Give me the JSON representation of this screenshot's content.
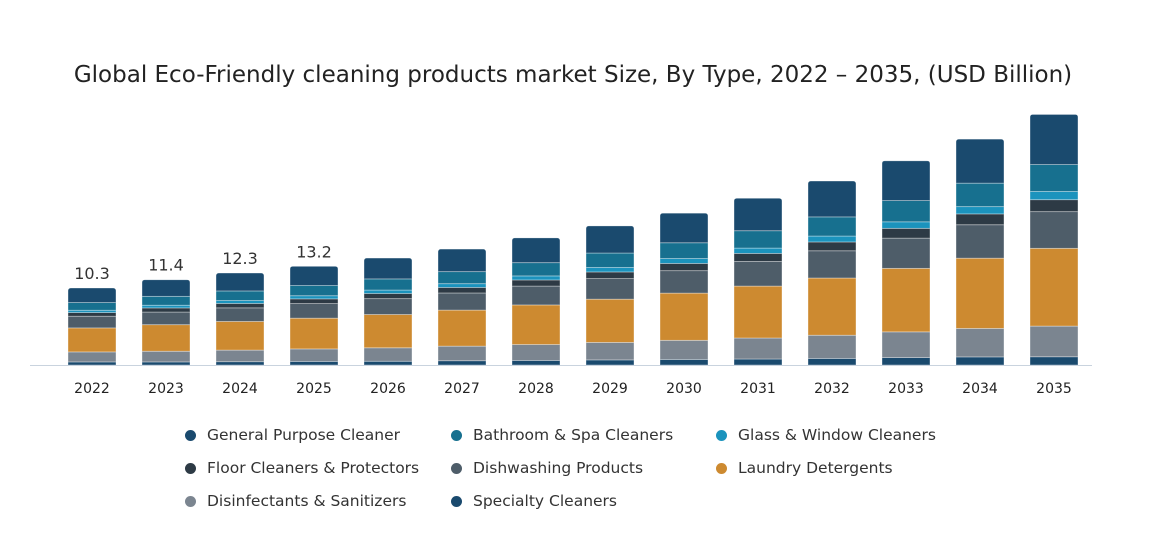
{
  "chart_data": {
    "type": "bar",
    "stacked": true,
    "title": "Global Eco-Friendly cleaning products market Size, By Type, 2022 – 2035, (USD Billion)",
    "xlabel": "",
    "ylabel": "",
    "ylim": [
      0,
      34
    ],
    "grid": false,
    "legend_placement": "bottom",
    "categories": [
      "2022",
      "2023",
      "2024",
      "2025",
      "2026",
      "2027",
      "2028",
      "2029",
      "2030",
      "2031",
      "2032",
      "2033",
      "2034",
      "2035"
    ],
    "totals_labels": [
      "10.3",
      "11.4",
      "12.3",
      "13.2"
    ],
    "series": [
      {
        "name": "Specialty Cleaners",
        "color": "#1a4a6e",
        "values": [
          0.41,
          0.41,
          0.44,
          0.48,
          0.5,
          0.57,
          0.6,
          0.68,
          0.74,
          0.8,
          0.88,
          0.99,
          1.08,
          1.1
        ]
      },
      {
        "name": "Disinfectants & Sanitizers",
        "color": "#7b8590",
        "values": [
          1.34,
          1.43,
          1.55,
          1.67,
          1.8,
          1.95,
          2.14,
          2.34,
          2.56,
          2.81,
          3.1,
          3.44,
          3.81,
          4.1
        ]
      },
      {
        "name": "Laundry Detergents",
        "color": "#cd8a30",
        "values": [
          3.21,
          3.55,
          3.83,
          4.11,
          4.45,
          4.82,
          5.29,
          5.78,
          6.31,
          6.94,
          7.65,
          8.49,
          9.39,
          10.4
        ]
      },
      {
        "name": "Dishwashing Products",
        "color": "#4e5d69",
        "values": [
          1.56,
          1.69,
          1.82,
          1.95,
          2.12,
          2.29,
          2.52,
          2.75,
          3.0,
          3.3,
          3.64,
          4.04,
          4.47,
          4.9
        ]
      },
      {
        "name": "Floor Cleaners & Protectors",
        "color": "#2d3a45",
        "values": [
          0.49,
          0.55,
          0.59,
          0.63,
          0.69,
          0.74,
          0.82,
          0.89,
          0.97,
          1.07,
          1.18,
          1.31,
          1.45,
          1.6
        ]
      },
      {
        "name": "Glass & Window Cleaners",
        "color": "#1b93bd",
        "values": [
          0.31,
          0.36,
          0.39,
          0.42,
          0.46,
          0.5,
          0.54,
          0.6,
          0.65,
          0.71,
          0.79,
          0.87,
          0.97,
          1.1
        ]
      },
      {
        "name": "Bathroom & Spa Cleaners",
        "color": "#17708f",
        "values": [
          1.03,
          1.19,
          1.28,
          1.37,
          1.49,
          1.61,
          1.77,
          1.93,
          2.11,
          2.32,
          2.56,
          2.84,
          3.14,
          3.6
        ]
      },
      {
        "name": "General Purpose Cleaner",
        "color": "#1a4a6e",
        "values": [
          1.95,
          2.22,
          2.4,
          2.57,
          2.79,
          3.02,
          3.32,
          3.63,
          3.96,
          4.35,
          4.8,
          5.32,
          5.89,
          6.7
        ]
      }
    ],
    "legend_order": [
      "General Purpose Cleaner",
      "Bathroom & Spa Cleaners",
      "Glass & Window Cleaners",
      "Floor Cleaners & Protectors",
      "Dishwashing Products",
      "Laundry Detergents",
      "Disinfectants & Sanitizers",
      "Specialty Cleaners"
    ]
  }
}
